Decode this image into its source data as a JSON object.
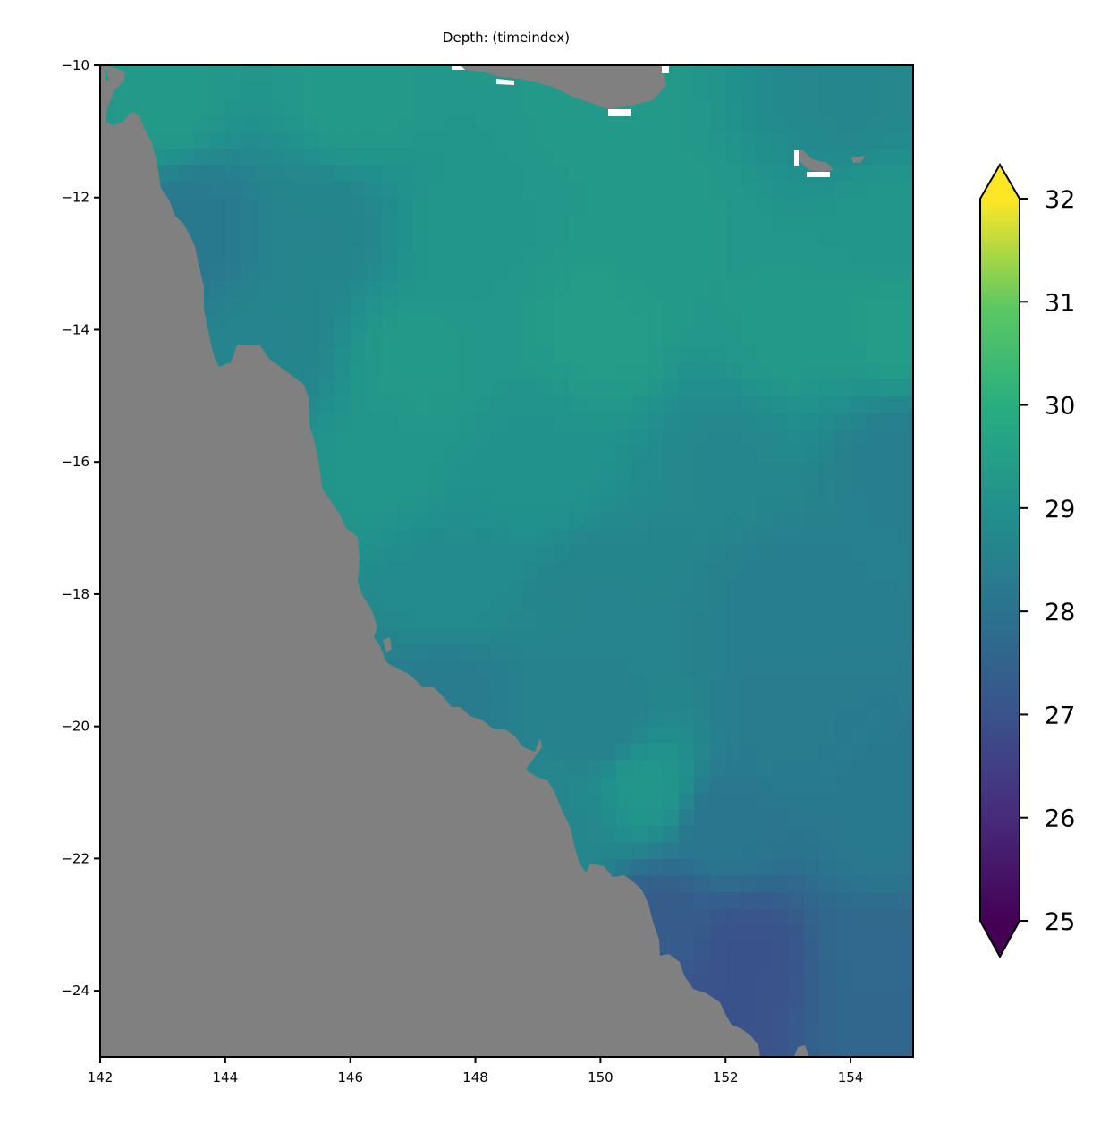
{
  "chart_data": {
    "type": "heatmap",
    "title": "Depth: (timeindex)",
    "xlim": [
      142,
      155
    ],
    "ylim": [
      -25,
      -10
    ],
    "x_ticks": [
      "142",
      "144",
      "146",
      "148",
      "150",
      "152",
      "154"
    ],
    "y_ticks": [
      "−10",
      "−12",
      "−14",
      "−16",
      "−18",
      "−20",
      "−22",
      "−24"
    ],
    "x_tick_values": [
      142,
      144,
      146,
      148,
      150,
      152,
      154
    ],
    "y_tick_values": [
      -10,
      -12,
      -14,
      -16,
      -18,
      -20,
      -22,
      -24
    ],
    "colormap": "viridis",
    "colorbar": {
      "min": 25,
      "max": 32,
      "extend": "both",
      "ticks": [
        "25",
        "26",
        "27",
        "28",
        "29",
        "30",
        "31",
        "32"
      ],
      "tick_values": [
        25,
        26,
        27,
        28,
        29,
        30,
        31,
        32
      ]
    },
    "land_color": "#808080",
    "grid": false,
    "field_samples": [
      {
        "lon": 143.0,
        "lat": -10.5,
        "value": 29.3
      },
      {
        "lon": 146.0,
        "lat": -10.5,
        "value": 29.3
      },
      {
        "lon": 150.0,
        "lat": -10.5,
        "value": 29.3
      },
      {
        "lon": 154.0,
        "lat": -10.5,
        "value": 28.7
      },
      {
        "lon": 143.5,
        "lat": -12.5,
        "value": 28.2
      },
      {
        "lon": 145.5,
        "lat": -12.5,
        "value": 28.6
      },
      {
        "lon": 148.0,
        "lat": -12.5,
        "value": 29.2
      },
      {
        "lon": 151.0,
        "lat": -12.5,
        "value": 29.3
      },
      {
        "lon": 154.5,
        "lat": -12.5,
        "value": 29.2
      },
      {
        "lon": 144.8,
        "lat": -14.2,
        "value": 28.6
      },
      {
        "lon": 147.0,
        "lat": -14.5,
        "value": 29.3
      },
      {
        "lon": 150.0,
        "lat": -14.0,
        "value": 29.4
      },
      {
        "lon": 153.0,
        "lat": -14.0,
        "value": 29.3
      },
      {
        "lon": 154.8,
        "lat": -14.0,
        "value": 29.4
      },
      {
        "lon": 146.5,
        "lat": -16.0,
        "value": 29.2
      },
      {
        "lon": 149.0,
        "lat": -16.0,
        "value": 29.1
      },
      {
        "lon": 152.0,
        "lat": -16.0,
        "value": 28.7
      },
      {
        "lon": 154.8,
        "lat": -16.0,
        "value": 28.4
      },
      {
        "lon": 147.5,
        "lat": -18.0,
        "value": 28.8
      },
      {
        "lon": 150.0,
        "lat": -18.0,
        "value": 28.6
      },
      {
        "lon": 153.0,
        "lat": -18.0,
        "value": 28.4
      },
      {
        "lon": 147.5,
        "lat": -19.5,
        "value": 28.3
      },
      {
        "lon": 150.0,
        "lat": -20.0,
        "value": 28.5
      },
      {
        "lon": 153.0,
        "lat": -20.0,
        "value": 28.3
      },
      {
        "lon": 150.7,
        "lat": -20.9,
        "value": 29.2
      },
      {
        "lon": 149.5,
        "lat": -21.5,
        "value": 28.7
      },
      {
        "lon": 152.0,
        "lat": -21.5,
        "value": 28.1
      },
      {
        "lon": 154.5,
        "lat": -21.5,
        "value": 28.2
      },
      {
        "lon": 151.0,
        "lat": -23.0,
        "value": 27.3
      },
      {
        "lon": 152.3,
        "lat": -23.5,
        "value": 27.0
      },
      {
        "lon": 154.5,
        "lat": -23.5,
        "value": 27.7
      },
      {
        "lon": 152.0,
        "lat": -24.3,
        "value": 27.0
      },
      {
        "lon": 154.5,
        "lat": -24.7,
        "value": 27.6
      }
    ]
  }
}
